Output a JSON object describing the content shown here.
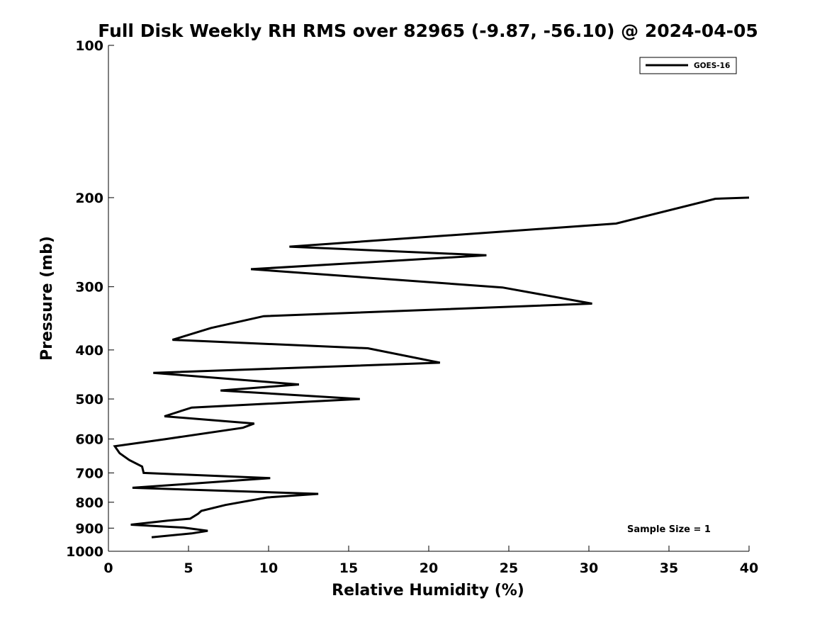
{
  "chart_data": {
    "type": "line",
    "title": "Full Disk Weekly RH RMS over 82965 (-9.87, -56.10) @ 2024-04-05",
    "xlabel": "Relative Humidity (%)",
    "ylabel": "Pressure (mb)",
    "xlim": [
      0,
      40
    ],
    "ylim": [
      1000,
      100
    ],
    "yscale": "log",
    "y_reversed": true,
    "xticks": [
      0,
      5,
      10,
      15,
      20,
      25,
      30,
      35,
      40
    ],
    "yticks": [
      100,
      200,
      300,
      400,
      500,
      600,
      700,
      800,
      900,
      1000
    ],
    "grid": false,
    "legend_position": "top-right",
    "annotation": "Sample Size = 1",
    "series": [
      {
        "name": "GOES-16",
        "color": "#000000",
        "x": [
          40.0,
          37.9,
          31.7,
          11.3,
          23.6,
          8.9,
          24.6,
          30.2,
          9.7,
          6.4,
          4.0,
          16.2,
          20.7,
          2.8,
          11.9,
          7.0,
          15.7,
          5.2,
          3.5,
          9.1,
          8.4,
          3.6,
          0.4,
          0.7,
          1.3,
          2.1,
          2.2,
          10.1,
          1.5,
          13.1,
          9.9,
          7.3,
          5.8,
          5.6,
          5.1,
          3.7,
          1.4,
          4.7,
          6.2,
          5.2,
          2.7
        ],
        "y": [
          200,
          201,
          225,
          250,
          260,
          277,
          301,
          324,
          343,
          362,
          382,
          397,
          424,
          444,
          468,
          481,
          500,
          520,
          541,
          559,
          570,
          600,
          620,
          640,
          660,
          680,
          700,
          717,
          749,
          770,
          783,
          810,
          832,
          843,
          862,
          870,
          886,
          898,
          911,
          922,
          938
        ]
      }
    ]
  }
}
